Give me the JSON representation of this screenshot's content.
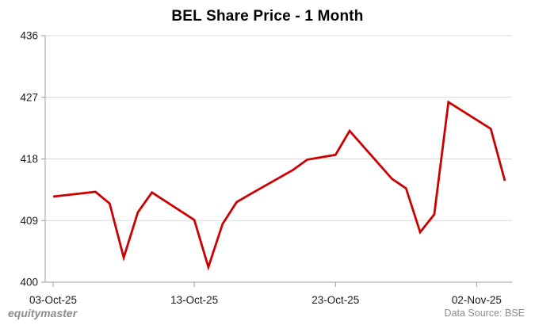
{
  "colors": {
    "line": "#cc0000",
    "grid": "#d9d9d9",
    "axis": "#9e9e9e",
    "tick_label": "#1a1a1a",
    "muted_text": "#8c8c8c",
    "background": "#ffffff"
  },
  "footer": {
    "brand": "equitymaster",
    "data_source": "Data Source: BSE"
  },
  "chart_data": {
    "type": "line",
    "title": "BEL Share Price - 1 Month",
    "series_name": "BEL Share Price",
    "xlabel": "",
    "ylabel": "",
    "ylim": [
      400,
      436
    ],
    "y_ticks": [
      436,
      427,
      418,
      409,
      400
    ],
    "grid": "horizontal",
    "legend": "none",
    "line_color": "#cc0000",
    "x_ticks": [
      {
        "label": "03-Oct-25",
        "day": 0
      },
      {
        "label": "13-Oct-25",
        "day": 10
      },
      {
        "label": "23-Oct-25",
        "day": 20
      },
      {
        "label": "02-Nov-25",
        "day": 30
      }
    ],
    "points": [
      {
        "date": "03-Oct-25",
        "day": 0,
        "value": 412.5
      },
      {
        "date": "06-Oct-25",
        "day": 3,
        "value": 413.2
      },
      {
        "date": "07-Oct-25",
        "day": 4,
        "value": 411.5
      },
      {
        "date": "08-Oct-25",
        "day": 5,
        "value": 403.6
      },
      {
        "date": "09-Oct-25",
        "day": 6,
        "value": 410.2
      },
      {
        "date": "10-Oct-25",
        "day": 7,
        "value": 413.1
      },
      {
        "date": "13-Oct-25",
        "day": 10,
        "value": 409.1
      },
      {
        "date": "14-Oct-25",
        "day": 11,
        "value": 402.2
      },
      {
        "date": "15-Oct-25",
        "day": 12,
        "value": 408.5
      },
      {
        "date": "16-Oct-25",
        "day": 13,
        "value": 411.7
      },
      {
        "date": "17-Oct-25",
        "day": 14,
        "value": 412.9
      },
      {
        "date": "20-Oct-25",
        "day": 17,
        "value": 416.4
      },
      {
        "date": "21-Oct-25",
        "day": 18,
        "value": 417.9
      },
      {
        "date": "23-Oct-25",
        "day": 20,
        "value": 418.6
      },
      {
        "date": "24-Oct-25",
        "day": 21,
        "value": 422.1
      },
      {
        "date": "27-Oct-25",
        "day": 24,
        "value": 415.1
      },
      {
        "date": "28-Oct-25",
        "day": 25,
        "value": 413.7
      },
      {
        "date": "29-Oct-25",
        "day": 26,
        "value": 407.3
      },
      {
        "date": "30-Oct-25",
        "day": 27,
        "value": 409.9
      },
      {
        "date": "31-Oct-25",
        "day": 28,
        "value": 426.3
      },
      {
        "date": "03-Nov-25",
        "day": 31,
        "value": 422.4
      },
      {
        "date": "04-Nov-25",
        "day": 32,
        "value": 414.8
      }
    ]
  }
}
